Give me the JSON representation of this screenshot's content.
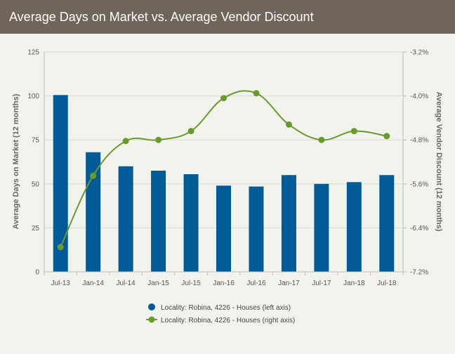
{
  "header": {
    "title": "Average Days on Market vs. Average Vendor Discount"
  },
  "chart_data": {
    "type": "bar+line",
    "categories": [
      "Jul-13",
      "Jan-14",
      "Jul-14",
      "Jan-15",
      "Jul-15",
      "Jan-16",
      "Jul-16",
      "Jan-17",
      "Jul-17",
      "Jan-18",
      "Jul-18"
    ],
    "series": [
      {
        "name": "Locality: Robina, 4226 - Houses (left axis)",
        "type": "bar",
        "axis": "left",
        "color": "#005b96",
        "values": [
          100.5,
          68,
          60,
          57.5,
          55.5,
          49,
          48.5,
          55,
          50,
          51,
          55
        ]
      },
      {
        "name": "Locality: Robina, 4226 - Houses (right axis)",
        "type": "line",
        "axis": "right",
        "color": "#6a9a2c",
        "values": [
          -6.75,
          -5.45,
          -4.82,
          -4.8,
          -4.64,
          -4.04,
          -3.95,
          -4.52,
          -4.8,
          -4.64,
          -4.73
        ]
      }
    ],
    "yLeft": {
      "label": "Average Days on Market (12 months)",
      "min": 0,
      "max": 125,
      "ticks": [
        0,
        25,
        50,
        75,
        100,
        125
      ],
      "tick_labels": [
        "0",
        "25",
        "50",
        "75",
        "100",
        "125"
      ]
    },
    "yRight": {
      "label": "Average Vendor Discount (12 months)",
      "min": -7.2,
      "max": -3.2,
      "ticks": [
        -7.2,
        -6.4,
        -5.6,
        -4.8,
        -4.0,
        -3.2
      ],
      "tick_labels": [
        "-7.2%",
        "-6.4%",
        "-5.6%",
        "-4.8%",
        "-4.0%",
        "-3.2%"
      ]
    },
    "grid": true,
    "legend": "bottom"
  }
}
